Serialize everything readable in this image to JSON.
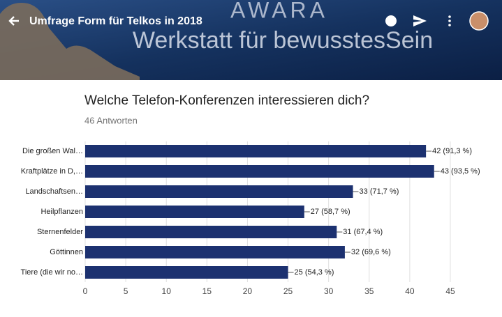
{
  "header": {
    "title": "Umfrage Form für Telkos in 2018",
    "banner_top": "AWARA",
    "banner_bottom": "Werkstatt für bewusstesSein"
  },
  "chart_data": {
    "type": "hbar",
    "title": "Welche Telefon-Konferenzen interessieren dich?",
    "subtitle": "46 Antworten",
    "categories": [
      "Die großen Wal…",
      "Kraftplätze in D,…",
      "Landschaftsen…",
      "Heilpflanzen",
      "Sternenfelder",
      "Göttinnen",
      "Tiere (die wir no…"
    ],
    "values": [
      42,
      43,
      33,
      27,
      31,
      32,
      25
    ],
    "value_labels": [
      "42 (91,3 %)",
      "43 (93,5 %)",
      "33 (71,7 %)",
      "27 (58,7 %)",
      "31 (67,4 %)",
      "32 (69,6 %)",
      "25 (54,3 %)"
    ],
    "color": "#1c3170",
    "xlim": [
      0,
      45
    ],
    "xticks": [
      0,
      5,
      10,
      15,
      20,
      25,
      30,
      35,
      40,
      45
    ],
    "grid": true
  }
}
